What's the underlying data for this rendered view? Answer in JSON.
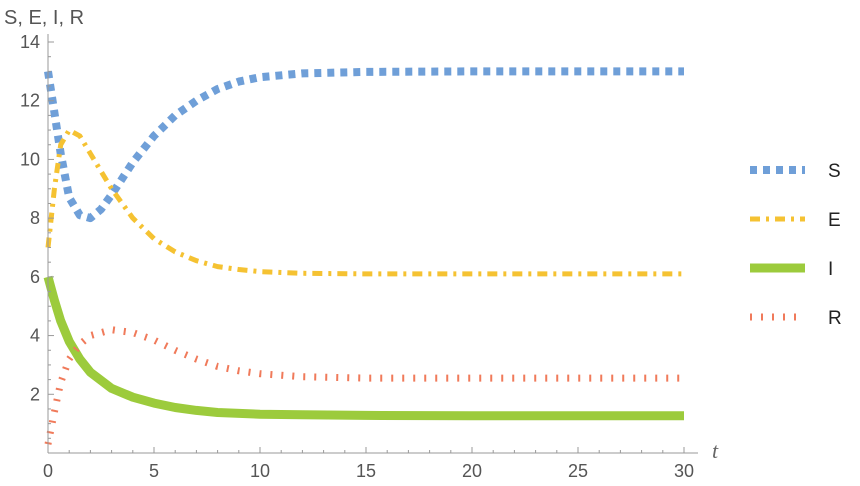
{
  "chart_data": {
    "type": "line",
    "ylabel": "S, E, I, R",
    "xlabel": "t",
    "xlim": [
      0,
      30
    ],
    "ylim": [
      0,
      14
    ],
    "x_ticks": [
      0,
      5,
      10,
      15,
      20,
      25,
      30
    ],
    "x_tick_labels": [
      "0",
      "5",
      "10",
      "15",
      "20",
      "25",
      "30"
    ],
    "y_ticks": [
      2,
      4,
      6,
      8,
      10,
      12,
      14
    ],
    "y_tick_labels": [
      "2",
      "4",
      "6",
      "8",
      "10",
      "12",
      "14"
    ],
    "grid": false,
    "legend_position": "right",
    "series": [
      {
        "name": "S",
        "color": "#6f9fd8",
        "style": "dotted-thick",
        "points": [
          [
            0,
            13.0
          ],
          [
            0.3,
            11.6
          ],
          [
            0.6,
            10.2
          ],
          [
            1.0,
            8.7
          ],
          [
            1.5,
            8.1
          ],
          [
            2.0,
            8.0
          ],
          [
            2.5,
            8.3
          ],
          [
            3.0,
            8.8
          ],
          [
            4.0,
            9.9
          ],
          [
            5.0,
            10.8
          ],
          [
            6.0,
            11.5
          ],
          [
            7.0,
            12.0
          ],
          [
            8.0,
            12.4
          ],
          [
            9.0,
            12.65
          ],
          [
            10.0,
            12.8
          ],
          [
            12.0,
            12.93
          ],
          [
            15.0,
            12.98
          ],
          [
            20.0,
            13.0
          ],
          [
            25.0,
            13.0
          ],
          [
            30.0,
            13.0
          ]
        ]
      },
      {
        "name": "E",
        "color": "#f5c232",
        "style": "dash-dot",
        "points": [
          [
            0,
            7.0
          ],
          [
            0.3,
            9.0
          ],
          [
            0.6,
            10.5
          ],
          [
            1.0,
            11.0
          ],
          [
            1.5,
            10.8
          ],
          [
            2.0,
            10.2
          ],
          [
            3.0,
            9.0
          ],
          [
            4.0,
            8.0
          ],
          [
            5.0,
            7.3
          ],
          [
            6.0,
            6.85
          ],
          [
            7.0,
            6.55
          ],
          [
            8.0,
            6.35
          ],
          [
            9.0,
            6.25
          ],
          [
            10.0,
            6.18
          ],
          [
            12.0,
            6.12
          ],
          [
            15.0,
            6.1
          ],
          [
            20.0,
            6.1
          ],
          [
            25.0,
            6.1
          ],
          [
            30.0,
            6.1
          ]
        ]
      },
      {
        "name": "I",
        "color": "#9ccb3c",
        "style": "solid-thick",
        "points": [
          [
            0,
            6.0
          ],
          [
            0.3,
            5.2
          ],
          [
            0.6,
            4.5
          ],
          [
            1.0,
            3.8
          ],
          [
            1.5,
            3.2
          ],
          [
            2.0,
            2.75
          ],
          [
            3.0,
            2.2
          ],
          [
            4.0,
            1.9
          ],
          [
            5.0,
            1.7
          ],
          [
            6.0,
            1.55
          ],
          [
            7.0,
            1.45
          ],
          [
            8.0,
            1.38
          ],
          [
            10.0,
            1.32
          ],
          [
            12.0,
            1.3
          ],
          [
            15.0,
            1.28
          ],
          [
            20.0,
            1.27
          ],
          [
            25.0,
            1.27
          ],
          [
            30.0,
            1.27
          ]
        ]
      },
      {
        "name": "R",
        "color": "#f07a5a",
        "style": "dotted-vertical",
        "points": [
          [
            0,
            0.3
          ],
          [
            0.3,
            1.4
          ],
          [
            0.6,
            2.4
          ],
          [
            1.0,
            3.2
          ],
          [
            1.5,
            3.7
          ],
          [
            2.0,
            4.0
          ],
          [
            3.0,
            4.2
          ],
          [
            4.0,
            4.1
          ],
          [
            5.0,
            3.85
          ],
          [
            6.0,
            3.5
          ],
          [
            7.0,
            3.2
          ],
          [
            8.0,
            2.95
          ],
          [
            9.0,
            2.8
          ],
          [
            10.0,
            2.7
          ],
          [
            12.0,
            2.6
          ],
          [
            15.0,
            2.55
          ],
          [
            20.0,
            2.55
          ],
          [
            25.0,
            2.55
          ],
          [
            30.0,
            2.55
          ]
        ]
      }
    ]
  }
}
